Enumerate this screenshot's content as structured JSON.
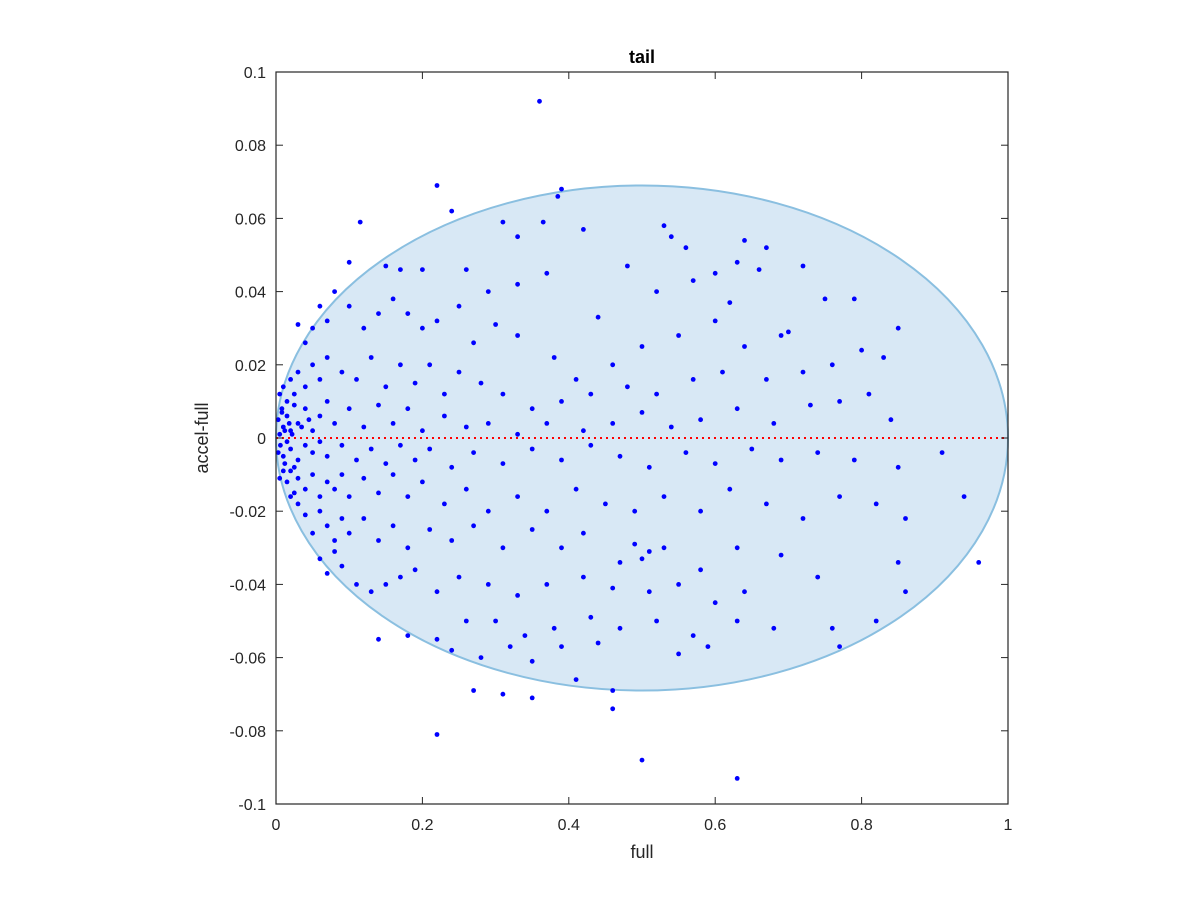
{
  "chart_data": {
    "type": "scatter",
    "title": "tail",
    "xlabel": "full",
    "ylabel": "accel-full",
    "xlim": [
      0,
      1
    ],
    "ylim": [
      -0.1,
      0.1
    ],
    "xticks": [
      0,
      0.2,
      0.4,
      0.6,
      0.8,
      1
    ],
    "yticks": [
      0.1,
      0.08,
      0.06,
      0.04,
      0.02,
      0,
      -0.02,
      -0.04,
      -0.06,
      -0.08,
      -0.1
    ],
    "xtick_labels": [
      "0",
      "0.2",
      "0.4",
      "0.6",
      "0.8",
      "1"
    ],
    "ytick_labels": [
      "0.1",
      "0.08",
      "0.06",
      "0.04",
      "0.02",
      "0",
      "-0.02",
      "-0.04",
      "-0.06",
      "-0.08",
      "-0.1"
    ],
    "grid": false,
    "legend": "none",
    "region": {
      "shape": "ellipse",
      "center": [
        0.5,
        0
      ],
      "radii": [
        0.5,
        0.069
      ],
      "fill": "#d8e8f5",
      "stroke": "#8abfe0"
    },
    "reference_line": {
      "y": 0,
      "x_range": [
        0,
        1
      ],
      "color": "#ff0000",
      "style": "dotted"
    },
    "point_color": "#0000ff",
    "series": [
      {
        "values": [
          [
            0.36,
            0.092
          ],
          [
            0.22,
            0.069
          ],
          [
            0.39,
            0.068
          ],
          [
            0.385,
            0.066
          ],
          [
            0.115,
            0.059
          ],
          [
            0.24,
            0.062
          ],
          [
            0.31,
            0.059
          ],
          [
            0.365,
            0.059
          ],
          [
            0.33,
            0.055
          ],
          [
            0.42,
            0.057
          ],
          [
            0.53,
            0.058
          ],
          [
            0.54,
            0.055
          ],
          [
            0.56,
            0.052
          ],
          [
            0.64,
            0.054
          ],
          [
            0.67,
            0.052
          ],
          [
            0.72,
            0.047
          ],
          [
            0.63,
            0.048
          ],
          [
            0.6,
            0.045
          ],
          [
            0.66,
            0.046
          ],
          [
            0.1,
            0.048
          ],
          [
            0.15,
            0.047
          ],
          [
            0.17,
            0.046
          ],
          [
            0.2,
            0.046
          ],
          [
            0.26,
            0.046
          ],
          [
            0.29,
            0.04
          ],
          [
            0.33,
            0.042
          ],
          [
            0.37,
            0.045
          ],
          [
            0.48,
            0.047
          ],
          [
            0.52,
            0.04
          ],
          [
            0.57,
            0.043
          ],
          [
            0.62,
            0.037
          ],
          [
            0.75,
            0.038
          ],
          [
            0.79,
            0.038
          ],
          [
            0.85,
            0.03
          ],
          [
            0.7,
            0.029
          ],
          [
            0.69,
            0.028
          ],
          [
            0.64,
            0.025
          ],
          [
            0.6,
            0.032
          ],
          [
            0.55,
            0.028
          ],
          [
            0.5,
            0.025
          ],
          [
            0.46,
            0.02
          ],
          [
            0.44,
            0.033
          ],
          [
            0.41,
            0.016
          ],
          [
            0.38,
            0.022
          ],
          [
            0.33,
            0.028
          ],
          [
            0.3,
            0.031
          ],
          [
            0.27,
            0.026
          ],
          [
            0.25,
            0.036
          ],
          [
            0.22,
            0.032
          ],
          [
            0.2,
            0.03
          ],
          [
            0.18,
            0.034
          ],
          [
            0.16,
            0.038
          ],
          [
            0.14,
            0.034
          ],
          [
            0.12,
            0.03
          ],
          [
            0.1,
            0.036
          ],
          [
            0.08,
            0.04
          ],
          [
            0.07,
            0.032
          ],
          [
            0.06,
            0.036
          ],
          [
            0.05,
            0.03
          ],
          [
            0.04,
            0.026
          ],
          [
            0.03,
            0.031
          ],
          [
            0.72,
            0.018
          ],
          [
            0.8,
            0.024
          ],
          [
            0.83,
            0.022
          ],
          [
            0.76,
            0.02
          ],
          [
            0.67,
            0.016
          ],
          [
            0.61,
            0.018
          ],
          [
            0.57,
            0.016
          ],
          [
            0.52,
            0.012
          ],
          [
            0.48,
            0.014
          ],
          [
            0.43,
            0.012
          ],
          [
            0.39,
            0.01
          ],
          [
            0.35,
            0.008
          ],
          [
            0.31,
            0.012
          ],
          [
            0.28,
            0.015
          ],
          [
            0.25,
            0.018
          ],
          [
            0.23,
            0.012
          ],
          [
            0.21,
            0.02
          ],
          [
            0.19,
            0.015
          ],
          [
            0.17,
            0.02
          ],
          [
            0.15,
            0.014
          ],
          [
            0.13,
            0.022
          ],
          [
            0.11,
            0.016
          ],
          [
            0.09,
            0.018
          ],
          [
            0.07,
            0.022
          ],
          [
            0.06,
            0.016
          ],
          [
            0.05,
            0.02
          ],
          [
            0.04,
            0.014
          ],
          [
            0.03,
            0.018
          ],
          [
            0.025,
            0.012
          ],
          [
            0.02,
            0.016
          ],
          [
            0.015,
            0.01
          ],
          [
            0.01,
            0.014
          ],
          [
            0.008,
            0.008
          ],
          [
            0.005,
            0.012
          ],
          [
            0.81,
            0.012
          ],
          [
            0.84,
            0.005
          ],
          [
            0.77,
            0.01
          ],
          [
            0.73,
            0.009
          ],
          [
            0.68,
            0.004
          ],
          [
            0.63,
            0.008
          ],
          [
            0.58,
            0.005
          ],
          [
            0.54,
            0.003
          ],
          [
            0.5,
            0.007
          ],
          [
            0.46,
            0.004
          ],
          [
            0.42,
            0.002
          ],
          [
            0.37,
            0.004
          ],
          [
            0.33,
            0.001
          ],
          [
            0.29,
            0.004
          ],
          [
            0.26,
            0.003
          ],
          [
            0.23,
            0.006
          ],
          [
            0.2,
            0.002
          ],
          [
            0.18,
            0.008
          ],
          [
            0.16,
            0.004
          ],
          [
            0.14,
            0.009
          ],
          [
            0.12,
            0.003
          ],
          [
            0.1,
            0.008
          ],
          [
            0.08,
            0.004
          ],
          [
            0.07,
            0.01
          ],
          [
            0.06,
            0.006
          ],
          [
            0.05,
            0.002
          ],
          [
            0.04,
            0.008
          ],
          [
            0.03,
            0.004
          ],
          [
            0.025,
            0.009
          ],
          [
            0.02,
            0.002
          ],
          [
            0.015,
            0.006
          ],
          [
            0.01,
            0.003
          ],
          [
            0.008,
            0.007
          ],
          [
            0.005,
            0.001
          ],
          [
            0.003,
            0.005
          ],
          [
            0.012,
            0.002
          ],
          [
            0.018,
            0.004
          ],
          [
            0.022,
            0.001
          ],
          [
            0.035,
            0.003
          ],
          [
            0.045,
            0.005
          ],
          [
            0.91,
            -0.004
          ],
          [
            0.85,
            -0.008
          ],
          [
            0.79,
            -0.006
          ],
          [
            0.74,
            -0.004
          ],
          [
            0.69,
            -0.006
          ],
          [
            0.65,
            -0.003
          ],
          [
            0.6,
            -0.007
          ],
          [
            0.56,
            -0.004
          ],
          [
            0.51,
            -0.008
          ],
          [
            0.47,
            -0.005
          ],
          [
            0.43,
            -0.002
          ],
          [
            0.39,
            -0.006
          ],
          [
            0.35,
            -0.003
          ],
          [
            0.31,
            -0.007
          ],
          [
            0.27,
            -0.004
          ],
          [
            0.24,
            -0.008
          ],
          [
            0.21,
            -0.003
          ],
          [
            0.19,
            -0.006
          ],
          [
            0.17,
            -0.002
          ],
          [
            0.15,
            -0.007
          ],
          [
            0.13,
            -0.003
          ],
          [
            0.11,
            -0.006
          ],
          [
            0.09,
            -0.002
          ],
          [
            0.07,
            -0.005
          ],
          [
            0.06,
            -0.001
          ],
          [
            0.05,
            -0.004
          ],
          [
            0.04,
            -0.002
          ],
          [
            0.03,
            -0.006
          ],
          [
            0.02,
            -0.003
          ],
          [
            0.015,
            -0.001
          ],
          [
            0.01,
            -0.005
          ],
          [
            0.006,
            -0.002
          ],
          [
            0.003,
            -0.004
          ],
          [
            0.012,
            -0.007
          ],
          [
            0.025,
            -0.008
          ],
          [
            0.94,
            -0.016
          ],
          [
            0.86,
            -0.022
          ],
          [
            0.82,
            -0.018
          ],
          [
            0.77,
            -0.016
          ],
          [
            0.72,
            -0.022
          ],
          [
            0.67,
            -0.018
          ],
          [
            0.62,
            -0.014
          ],
          [
            0.58,
            -0.02
          ],
          [
            0.53,
            -0.016
          ],
          [
            0.49,
            -0.02
          ],
          [
            0.45,
            -0.018
          ],
          [
            0.41,
            -0.014
          ],
          [
            0.37,
            -0.02
          ],
          [
            0.33,
            -0.016
          ],
          [
            0.29,
            -0.02
          ],
          [
            0.26,
            -0.014
          ],
          [
            0.23,
            -0.018
          ],
          [
            0.2,
            -0.012
          ],
          [
            0.18,
            -0.016
          ],
          [
            0.16,
            -0.01
          ],
          [
            0.14,
            -0.015
          ],
          [
            0.12,
            -0.011
          ],
          [
            0.1,
            -0.016
          ],
          [
            0.09,
            -0.01
          ],
          [
            0.08,
            -0.014
          ],
          [
            0.07,
            -0.012
          ],
          [
            0.06,
            -0.016
          ],
          [
            0.05,
            -0.01
          ],
          [
            0.04,
            -0.014
          ],
          [
            0.03,
            -0.011
          ],
          [
            0.025,
            -0.015
          ],
          [
            0.02,
            -0.009
          ],
          [
            0.015,
            -0.012
          ],
          [
            0.01,
            -0.009
          ],
          [
            0.005,
            -0.011
          ],
          [
            0.96,
            -0.034
          ],
          [
            0.85,
            -0.034
          ],
          [
            0.69,
            -0.032
          ],
          [
            0.63,
            -0.03
          ],
          [
            0.58,
            -0.036
          ],
          [
            0.53,
            -0.03
          ],
          [
            0.51,
            -0.031
          ],
          [
            0.5,
            -0.033
          ],
          [
            0.49,
            -0.029
          ],
          [
            0.47,
            -0.034
          ],
          [
            0.42,
            -0.026
          ],
          [
            0.39,
            -0.03
          ],
          [
            0.35,
            -0.025
          ],
          [
            0.31,
            -0.03
          ],
          [
            0.27,
            -0.024
          ],
          [
            0.24,
            -0.028
          ],
          [
            0.21,
            -0.025
          ],
          [
            0.18,
            -0.03
          ],
          [
            0.16,
            -0.024
          ],
          [
            0.14,
            -0.028
          ],
          [
            0.12,
            -0.022
          ],
          [
            0.1,
            -0.026
          ],
          [
            0.09,
            -0.022
          ],
          [
            0.08,
            -0.028
          ],
          [
            0.07,
            -0.024
          ],
          [
            0.06,
            -0.02
          ],
          [
            0.05,
            -0.026
          ],
          [
            0.04,
            -0.021
          ],
          [
            0.03,
            -0.018
          ],
          [
            0.02,
            -0.016
          ],
          [
            0.86,
            -0.042
          ],
          [
            0.74,
            -0.038
          ],
          [
            0.64,
            -0.042
          ],
          [
            0.6,
            -0.045
          ],
          [
            0.55,
            -0.04
          ],
          [
            0.51,
            -0.042
          ],
          [
            0.46,
            -0.041
          ],
          [
            0.42,
            -0.038
          ],
          [
            0.37,
            -0.04
          ],
          [
            0.33,
            -0.043
          ],
          [
            0.29,
            -0.04
          ],
          [
            0.25,
            -0.038
          ],
          [
            0.22,
            -0.042
          ],
          [
            0.19,
            -0.036
          ],
          [
            0.17,
            -0.038
          ],
          [
            0.15,
            -0.04
          ],
          [
            0.13,
            -0.042
          ],
          [
            0.11,
            -0.04
          ],
          [
            0.09,
            -0.035
          ],
          [
            0.07,
            -0.037
          ],
          [
            0.06,
            -0.033
          ],
          [
            0.08,
            -0.031
          ],
          [
            0.82,
            -0.05
          ],
          [
            0.76,
            -0.052
          ],
          [
            0.68,
            -0.052
          ],
          [
            0.63,
            -0.05
          ],
          [
            0.57,
            -0.054
          ],
          [
            0.52,
            -0.05
          ],
          [
            0.47,
            -0.052
          ],
          [
            0.43,
            -0.049
          ],
          [
            0.38,
            -0.052
          ],
          [
            0.34,
            -0.054
          ],
          [
            0.3,
            -0.05
          ],
          [
            0.26,
            -0.05
          ],
          [
            0.22,
            -0.055
          ],
          [
            0.18,
            -0.054
          ],
          [
            0.14,
            -0.055
          ],
          [
            0.77,
            -0.057
          ],
          [
            0.59,
            -0.057
          ],
          [
            0.55,
            -0.059
          ],
          [
            0.44,
            -0.056
          ],
          [
            0.39,
            -0.057
          ],
          [
            0.35,
            -0.061
          ],
          [
            0.32,
            -0.057
          ],
          [
            0.28,
            -0.06
          ],
          [
            0.24,
            -0.058
          ],
          [
            0.41,
            -0.066
          ],
          [
            0.46,
            -0.069
          ],
          [
            0.35,
            -0.071
          ],
          [
            0.31,
            -0.07
          ],
          [
            0.27,
            -0.069
          ],
          [
            0.46,
            -0.074
          ],
          [
            0.22,
            -0.081
          ],
          [
            0.5,
            -0.088
          ],
          [
            0.63,
            -0.093
          ]
        ]
      }
    ]
  }
}
